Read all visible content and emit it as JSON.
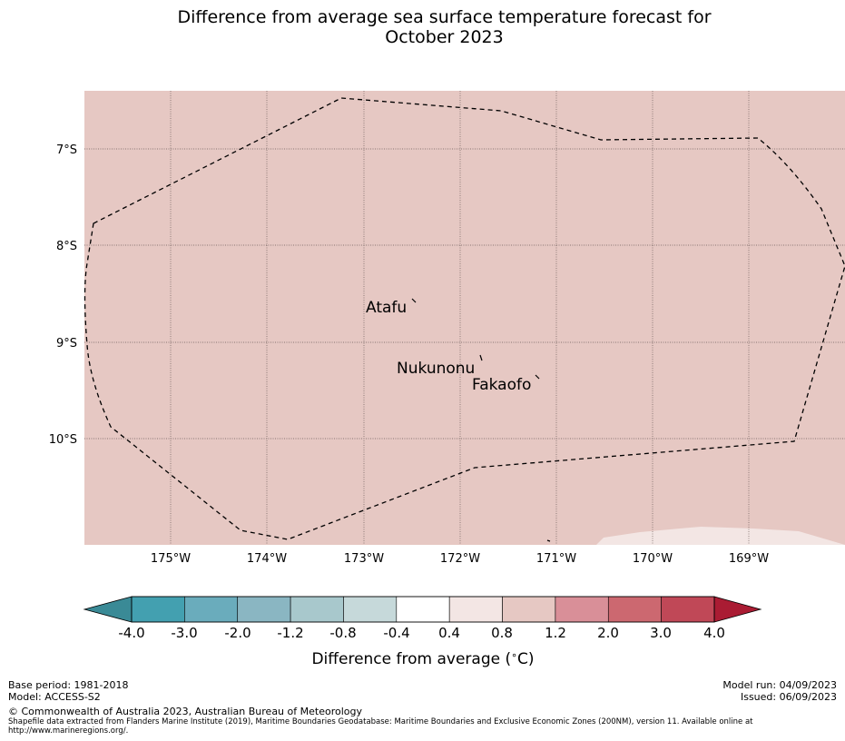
{
  "title_line1": "Difference from average sea surface temperature forecast for",
  "title_line2": "October 2023",
  "map": {
    "lat_labels": [
      "7°S",
      "8°S",
      "9°S",
      "10°S"
    ],
    "lon_labels": [
      "175°W",
      "174°W",
      "173°W",
      "172°W",
      "171°W",
      "170°W",
      "169°W"
    ],
    "places": [
      "Atafu",
      "Nukunonu",
      "Fakaofo"
    ],
    "ocean_color": "#e6c8c3",
    "warm_band_color": "#f3e6e4"
  },
  "colorbar": {
    "ticks": [
      "-4.0",
      "-3.0",
      "-2.0",
      "-1.2",
      "-0.8",
      "-0.4",
      "0.4",
      "0.8",
      "1.2",
      "2.0",
      "3.0",
      "4.0"
    ],
    "colors": [
      "#43a0b0",
      "#6aacbc",
      "#8ab6c2",
      "#a8c8cc",
      "#c6d9da",
      "#ffffff",
      "#f3e6e4",
      "#e6c8c3",
      "#d98f98",
      "#cc6870",
      "#c04857"
    ],
    "under_color": "#3a8a96",
    "over_color": "#aa1c33",
    "label": "Difference from average (",
    "label_unit": "C)",
    "label_deg": "∘"
  },
  "footer": {
    "base_period": "Base period: 1981-2018",
    "model": "Model: ACCESS-S2",
    "model_run": "Model run: 04/09/2023",
    "issued": "Issued: 06/09/2023",
    "copyright": "© Commonwealth of Australia 2023, Australian Bureau of Meteorology",
    "shapefile_line1": "Shapefile data extracted from Flanders Marine Institute (2019), Maritime Boundaries Geodatabase: Maritime Boundaries and Exclusive Economic Zones (200NM), version 11. Available online at",
    "shapefile_line2": "http://www.marineregions.org/."
  }
}
